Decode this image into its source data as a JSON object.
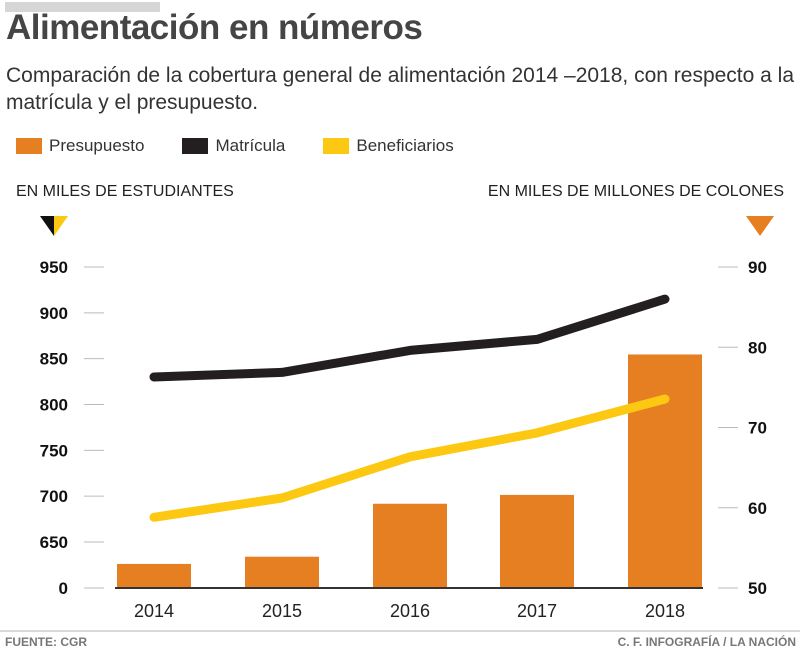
{
  "header": {
    "title": "Alimentación en números",
    "subtitle": "Comparación de la cobertura general de alimentación 2014 –2018, con respecto a la matrícula y el presupuesto."
  },
  "legend": [
    {
      "label": "Presupuesto",
      "color": "#e67e22"
    },
    {
      "label": "Matrícula",
      "color": "#231f20"
    },
    {
      "label": "Beneficiarios",
      "color": "#fcc812"
    }
  ],
  "axes": {
    "left_title": "EN MILES DE ESTUDIANTES",
    "right_title": "EN MILES DE MILLONES DE COLONES"
  },
  "footer": {
    "source": "FUENTE: CGR",
    "credit": "C. F. INFOGRAFÍA / LA NACIÓN"
  },
  "chart_data": {
    "type": "bar",
    "title": "Alimentación en números",
    "categories": [
      "2014",
      "2015",
      "2016",
      "2017",
      "2018"
    ],
    "series": [
      {
        "name": "Presupuesto",
        "type": "bar",
        "axis": "right",
        "color": "#e67e22",
        "values": [
          53.0,
          53.9,
          60.5,
          61.6,
          79.1
        ]
      },
      {
        "name": "Matrícula",
        "type": "line",
        "axis": "left",
        "color": "#231f20",
        "values": [
          830,
          835,
          859,
          871,
          915
        ]
      },
      {
        "name": "Beneficiarios",
        "type": "line",
        "axis": "left",
        "color": "#fcc812",
        "values": [
          677,
          698,
          743,
          769,
          806
        ]
      }
    ],
    "left_axis": {
      "label": "EN MILES DE ESTUDIANTES",
      "ticks": [
        0,
        650,
        700,
        750,
        800,
        850,
        900,
        950
      ],
      "tick_labels": [
        "0",
        "650",
        "700",
        "750",
        "800",
        "850",
        "900",
        "950"
      ],
      "broken": true,
      "range": [
        615,
        950
      ]
    },
    "right_axis": {
      "label": "EN MILES DE MILLONES DE COLONES",
      "ticks": [
        50,
        60,
        70,
        80,
        90
      ],
      "tick_labels": [
        "50",
        "60",
        "70",
        "80",
        "90"
      ],
      "range": [
        50,
        90
      ]
    },
    "xlabel": "",
    "grid": false,
    "legend_position": "top-left"
  }
}
